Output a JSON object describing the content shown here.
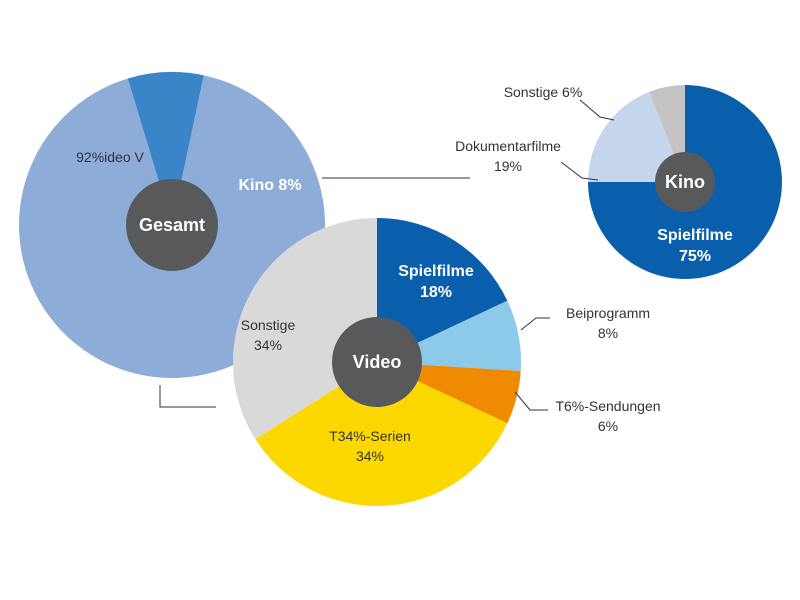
{
  "chart_data": [
    {
      "type": "pie",
      "center_label": "Gesamt",
      "slices": [
        {
          "label": "Video",
          "value": 92,
          "value_text": "92%",
          "color": "#8eacd8"
        },
        {
          "label": "Kino",
          "value": 8,
          "value_text": "8%",
          "color": "#3a85c8"
        }
      ]
    },
    {
      "type": "pie",
      "center_label": "Kino",
      "slices": [
        {
          "label": "Spielfilme",
          "value": 75,
          "value_text": "75%",
          "color": "#0a5fac"
        },
        {
          "label": "Dokumentarfilme",
          "value": 19,
          "value_text": "19%",
          "color": "#c5d5ec"
        },
        {
          "label": "Sonstige",
          "value": 6,
          "value_text": "6%",
          "color": "#c4c4c4"
        }
      ]
    },
    {
      "type": "pie",
      "center_label": "Video",
      "slices": [
        {
          "label": "Spielfilme",
          "value": 18,
          "value_text": "18%",
          "color": "#0a5fac"
        },
        {
          "label": "Beiprogramm",
          "value": 8,
          "value_text": "8%",
          "color": "#8dcaea"
        },
        {
          "label": "TV-Sendungen",
          "value": 6,
          "value_text": "6%",
          "color": "#f08a00"
        },
        {
          "label": "TV-Serien",
          "value": 34,
          "value_text": "34%",
          "color": "#fdd800"
        },
        {
          "label": "Sonstige",
          "value": 34,
          "value_text": "34%",
          "color": "#d9d9d9"
        }
      ]
    }
  ],
  "colors": {
    "center_disc": "#58595b",
    "leader": "#333333"
  }
}
